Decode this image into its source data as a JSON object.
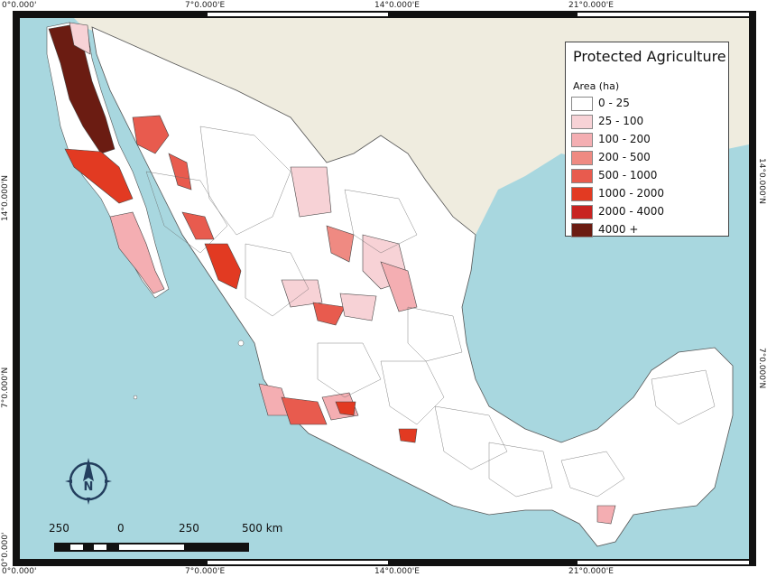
{
  "coords": {
    "top": [
      "0°0.000'",
      "7°0.000'E",
      "14°0.000'E",
      "21°0.000'E"
    ],
    "bottom": [
      "0°0.000'",
      "7°0.000'E",
      "14°0.000'E",
      "21°0.000'E"
    ],
    "left": [
      "14°0.000'N",
      "7°0.000'N",
      "0°0.000'"
    ],
    "right": [
      "14°0.000'N",
      "7°0.000'N"
    ]
  },
  "legend": {
    "title": "Protected Agriculture",
    "subtitle": "Area (ha)",
    "items": [
      {
        "label": "0 - 25",
        "color": "#ffffff"
      },
      {
        "label": "25 - 100",
        "color": "#f7d2d6"
      },
      {
        "label": "100 - 200",
        "color": "#f4aeb2"
      },
      {
        "label": "200 - 500",
        "color": "#ef8a82"
      },
      {
        "label": "500 - 1000",
        "color": "#e85b4e"
      },
      {
        "label": "1000 - 2000",
        "color": "#e23a22"
      },
      {
        "label": "2000 - 4000",
        "color": "#c82321"
      },
      {
        "label": "4000 +",
        "color": "#6b1c12"
      }
    ]
  },
  "scale": {
    "labels": [
      "250",
      "0",
      "250",
      "500 km"
    ]
  },
  "compass": {
    "letter": "N"
  },
  "colors": {
    "sea": "#a8d7df",
    "land_other": "#efecdf",
    "border": "#555555"
  }
}
